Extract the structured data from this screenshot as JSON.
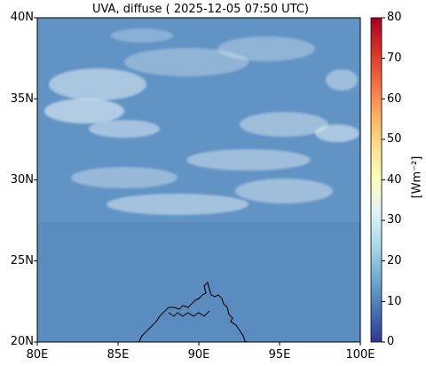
{
  "title": "UVA, diffuse ( 2025-12-05 07:50 UTC)",
  "map": {
    "lon_range": [
      80,
      100
    ],
    "lat_range": [
      20,
      40
    ],
    "x_ticks": [
      "80E",
      "85E",
      "90E",
      "95E",
      "100E"
    ],
    "y_ticks": [
      "20N",
      "25N",
      "30N",
      "35N",
      "40N"
    ],
    "field_color": "#5b8cc0",
    "cloud_color": "#e6f1f7",
    "coastline_color": "#000000"
  },
  "colorbar": {
    "label": "[Wm⁻²]",
    "range": [
      0,
      80
    ],
    "ticks": [
      "0",
      "10",
      "20",
      "30",
      "40",
      "50",
      "60",
      "70",
      "80"
    ],
    "colormap": "RdYlBu_r",
    "stops": [
      "#313695",
      "#4575b4",
      "#74add1",
      "#abd9e9",
      "#e0f3f8",
      "#ffffbf",
      "#fee090",
      "#fdae61",
      "#f46d43",
      "#d73027",
      "#a50026"
    ]
  }
}
